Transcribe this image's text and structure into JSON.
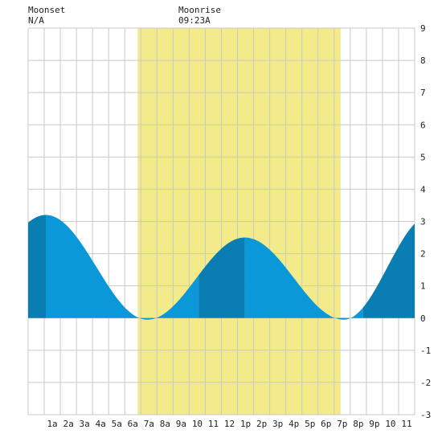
{
  "moonset": {
    "label": "Moonset",
    "time": "N/A"
  },
  "moonrise": {
    "label": "Moonrise",
    "time": "09:23A"
  },
  "colors": {
    "background": "#ffffff",
    "daylight": "#f3ea8a",
    "grid": "#c9c9c9",
    "tide_light": "#0b98d8",
    "tide_dark": "#0a7db3",
    "text": "#222222"
  },
  "chart_data": {
    "type": "area",
    "x_unit": "hour",
    "xlim": [
      -0.5,
      23.5
    ],
    "ylim": [
      -3,
      9
    ],
    "yticks": [
      -3,
      -2,
      -1,
      0,
      1,
      2,
      3,
      4,
      5,
      6,
      7,
      8,
      9
    ],
    "xticks": [
      {
        "x": 1,
        "label": "1a"
      },
      {
        "x": 2,
        "label": "2a"
      },
      {
        "x": 3,
        "label": "3a"
      },
      {
        "x": 4,
        "label": "4a"
      },
      {
        "x": 5,
        "label": "5a"
      },
      {
        "x": 6,
        "label": "6a"
      },
      {
        "x": 7,
        "label": "7a"
      },
      {
        "x": 8,
        "label": "8a"
      },
      {
        "x": 9,
        "label": "9a"
      },
      {
        "x": 10,
        "label": "10"
      },
      {
        "x": 11,
        "label": "11"
      },
      {
        "x": 12,
        "label": "12"
      },
      {
        "x": 13,
        "label": "1p"
      },
      {
        "x": 14,
        "label": "2p"
      },
      {
        "x": 15,
        "label": "3p"
      },
      {
        "x": 16,
        "label": "4p"
      },
      {
        "x": 17,
        "label": "5p"
      },
      {
        "x": 18,
        "label": "6p"
      },
      {
        "x": 19,
        "label": "7p"
      },
      {
        "x": 20,
        "label": "8p"
      },
      {
        "x": 21,
        "label": "9p"
      },
      {
        "x": 22,
        "label": "10"
      },
      {
        "x": 23,
        "label": "11"
      }
    ],
    "daylight": {
      "start": 6.3,
      "end": 18.9
    },
    "extremes": [
      {
        "x": 0.6,
        "y": 3.2
      },
      {
        "x": 6.9,
        "y": -0.05
      },
      {
        "x": 12.95,
        "y": 2.5
      },
      {
        "x": 19.1,
        "y": -0.05
      },
      {
        "x": 24.5,
        "y": 3.2
      }
    ],
    "grid": true
  }
}
